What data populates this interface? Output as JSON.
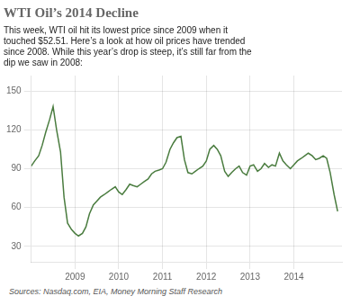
{
  "chart_data": {
    "type": "line",
    "title": "WTI Oil’s 2014 Decline",
    "subtitle": "This week, WTI oil hit its lowest price since 2009 when it\ntouched $52.51. Here’s a look at how oil prices have trended\nsince 2008. While this year’s drop is steep, it’s still far from the\ndip we saw in 2008:",
    "source": "Sources: Nasdaq.com, EIA, Money Morning Staff Research",
    "color": "#4a7c3f",
    "grid": true,
    "xlim": [
      2008.0,
      2015.1
    ],
    "xticks": [
      2009,
      2010,
      2011,
      2012,
      2013,
      2014
    ],
    "ylim": [
      18,
      162
    ],
    "yticks": [
      30,
      60,
      90,
      120,
      150
    ],
    "x": [
      2008.0,
      2008.08,
      2008.17,
      2008.25,
      2008.33,
      2008.42,
      2008.5,
      2008.58,
      2008.67,
      2008.75,
      2008.83,
      2008.92,
      2009.0,
      2009.08,
      2009.17,
      2009.25,
      2009.33,
      2009.42,
      2009.5,
      2009.58,
      2009.67,
      2009.75,
      2009.83,
      2009.92,
      2010.0,
      2010.08,
      2010.17,
      2010.25,
      2010.33,
      2010.42,
      2010.5,
      2010.58,
      2010.67,
      2010.75,
      2010.83,
      2010.92,
      2011.0,
      2011.08,
      2011.17,
      2011.25,
      2011.33,
      2011.42,
      2011.5,
      2011.58,
      2011.67,
      2011.75,
      2011.83,
      2011.92,
      2012.0,
      2012.08,
      2012.17,
      2012.25,
      2012.33,
      2012.42,
      2012.5,
      2012.58,
      2012.67,
      2012.75,
      2012.83,
      2012.92,
      2013.0,
      2013.08,
      2013.17,
      2013.25,
      2013.33,
      2013.42,
      2013.5,
      2013.58,
      2013.67,
      2013.75,
      2013.83,
      2013.92,
      2014.0,
      2014.08,
      2014.17,
      2014.25,
      2014.33,
      2014.42,
      2014.5,
      2014.58,
      2014.67,
      2014.75,
      2014.83,
      2014.92,
      2015.0
    ],
    "values": [
      92,
      96,
      100,
      108,
      118,
      128,
      138,
      120,
      103,
      68,
      48,
      43,
      40,
      38,
      40,
      45,
      55,
      62,
      65,
      68,
      70,
      72,
      74,
      76,
      72,
      70,
      74,
      78,
      77,
      76,
      78,
      80,
      82,
      86,
      88,
      89,
      90,
      95,
      105,
      110,
      114,
      115,
      97,
      87,
      86,
      88,
      90,
      92,
      96,
      105,
      108,
      105,
      100,
      88,
      84,
      87,
      90,
      92,
      87,
      85,
      92,
      93,
      88,
      90,
      94,
      91,
      93,
      92,
      102,
      96,
      93,
      90,
      93,
      96,
      98,
      100,
      102,
      100,
      97,
      98,
      100,
      98,
      87,
      70,
      57
    ]
  }
}
